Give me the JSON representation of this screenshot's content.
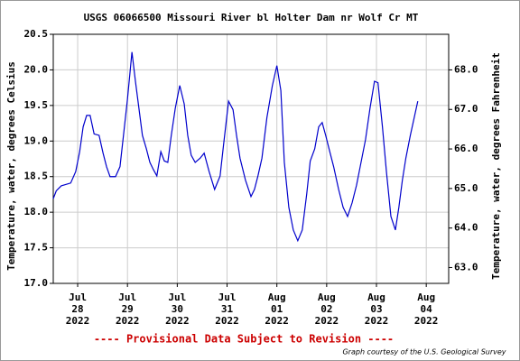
{
  "chart_data": {
    "type": "line",
    "title": "USGS 06066500 Missouri River bl Holter Dam nr Wolf Cr MT",
    "ylabel": "Temperature, water, degrees Celsius",
    "y2label": "Temperature, water, degrees Fahrenheit",
    "footer": "---- Provisional Data Subject to Revision ----",
    "credit": "Graph courtesy of the U.S. Geological Survey",
    "grid": true,
    "xlim": [
      -0.49,
      7.45
    ],
    "xticks": [
      {
        "value": 0,
        "label": "Jul\n28\n2022"
      },
      {
        "value": 1,
        "label": "Jul\n29\n2022"
      },
      {
        "value": 2,
        "label": "Jul\n30\n2022"
      },
      {
        "value": 3,
        "label": "Jul\n31\n2022"
      },
      {
        "value": 4,
        "label": "Aug\n01\n2022"
      },
      {
        "value": 5,
        "label": "Aug\n02\n2022"
      },
      {
        "value": 6,
        "label": "Aug\n03\n2022"
      },
      {
        "value": 7,
        "label": "Aug\n04\n2022"
      }
    ],
    "ylim": [
      17,
      20.5
    ],
    "yticks": [
      {
        "value": 17,
        "label": "17.0"
      },
      17.5,
      {
        "value": 18,
        "label": "18.0"
      },
      18.5,
      {
        "value": 19,
        "label": "19.0"
      },
      19.5,
      {
        "value": 20,
        "label": "20.0"
      },
      20.5
    ],
    "y2lim": [
      62.6,
      68.9
    ],
    "y2ticks": [
      {
        "value": 63,
        "label": "63.0"
      },
      {
        "value": 64,
        "label": "64.0"
      },
      {
        "value": 65,
        "label": "65.0"
      },
      {
        "value": 66,
        "label": "66.0"
      },
      {
        "value": 67,
        "label": "67.0"
      },
      {
        "value": 68,
        "label": "68.0"
      }
    ],
    "x": [
      -0.49,
      -0.43,
      -0.33,
      -0.14,
      -0.04,
      0.04,
      0.11,
      0.18,
      0.25,
      0.33,
      0.43,
      0.51,
      0.58,
      0.65,
      0.76,
      0.85,
      0.92,
      1.0,
      1.09,
      1.16,
      1.23,
      1.3,
      1.38,
      1.45,
      1.52,
      1.59,
      1.67,
      1.74,
      1.81,
      1.88,
      1.96,
      2.05,
      2.14,
      2.21,
      2.28,
      2.36,
      2.46,
      2.54,
      2.64,
      2.75,
      2.86,
      2.93,
      3.03,
      3.12,
      3.19,
      3.26,
      3.37,
      3.48,
      3.55,
      3.62,
      3.7,
      3.8,
      3.91,
      4.0,
      4.08,
      4.15,
      4.24,
      4.33,
      4.42,
      4.51,
      4.6,
      4.67,
      4.76,
      4.84,
      4.91,
      4.98,
      5.07,
      5.14,
      5.24,
      5.33,
      5.42,
      5.51,
      5.6,
      5.69,
      5.78,
      5.87,
      5.96,
      6.03,
      6.12,
      6.2,
      6.29,
      6.38,
      6.45,
      6.52,
      6.59,
      6.68,
      6.78,
      6.83
    ],
    "series": [
      {
        "color": "#0000cc",
        "values": [
          18.19,
          18.3,
          18.37,
          18.41,
          18.57,
          18.85,
          19.2,
          19.36,
          19.36,
          19.1,
          19.08,
          18.83,
          18.64,
          18.5,
          18.5,
          18.64,
          19.08,
          19.59,
          20.25,
          19.84,
          19.46,
          19.08,
          18.89,
          18.7,
          18.6,
          18.51,
          18.85,
          18.72,
          18.7,
          19.08,
          19.46,
          19.78,
          19.52,
          19.08,
          18.8,
          18.7,
          18.76,
          18.83,
          18.57,
          18.32,
          18.51,
          18.95,
          19.56,
          19.44,
          19.08,
          18.76,
          18.45,
          18.22,
          18.32,
          18.51,
          18.76,
          19.33,
          19.78,
          20.06,
          19.71,
          18.7,
          18.07,
          17.75,
          17.6,
          17.75,
          18.26,
          18.72,
          18.89,
          19.2,
          19.26,
          19.08,
          18.83,
          18.64,
          18.32,
          18.07,
          17.94,
          18.13,
          18.38,
          18.7,
          19.02,
          19.46,
          19.84,
          19.82,
          19.2,
          18.57,
          17.94,
          17.75,
          18.07,
          18.45,
          18.76,
          19.08,
          19.4,
          19.56
        ]
      }
    ]
  }
}
